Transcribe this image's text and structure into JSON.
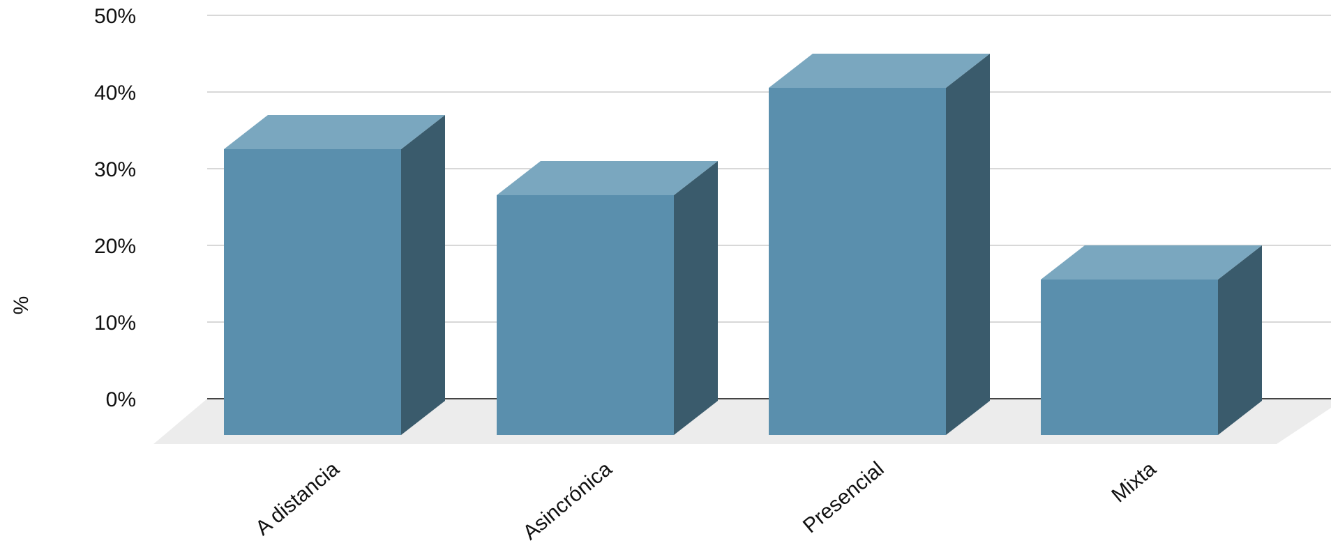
{
  "chart_data": {
    "type": "bar",
    "style": "3d-column",
    "title": "",
    "xlabel": "",
    "ylabel": "%",
    "ylim": [
      0,
      50
    ],
    "yticks": [
      "0%",
      "10%",
      "20%",
      "30%",
      "40%",
      "50%"
    ],
    "categories": [
      "A distancia",
      "Asincrónica",
      "Presencial",
      "Mixta"
    ],
    "values": [
      37,
      31,
      45,
      20
    ],
    "grid": true,
    "colors": {
      "front": "#5a8fad",
      "top": "#7aa7bf",
      "side": "#3a5b6c",
      "floor": "#ececec",
      "grid": "#cccccc",
      "baseline": "#444444"
    }
  }
}
